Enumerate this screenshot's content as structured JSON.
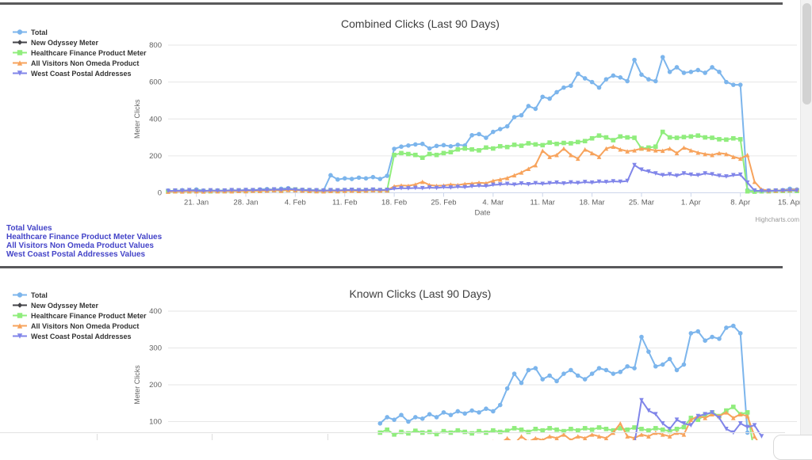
{
  "links": [
    "Total Values",
    "Healthcare Finance Product Meter Values",
    "All Visitors Non Omeda Product Values",
    "West Coast Postal Addresses Values"
  ],
  "chart_data": [
    {
      "type": "line",
      "title": "Combined Clicks (Last 90 Days)",
      "ylabel": "Meter Clicks",
      "xlabel": "Date",
      "credits": "Highcharts.com",
      "ylim": [
        0,
        800
      ],
      "yticks": [
        0,
        200,
        400,
        600,
        800
      ],
      "points": 90,
      "x_range": "17. Jan to 16. Apr, daily",
      "x_tick_labels": [
        "21. Jan",
        "28. Jan",
        "4. Feb",
        "11. Feb",
        "18. Feb",
        "25. Feb",
        "4. Mar",
        "11. Mar",
        "18. Mar",
        "25. Mar",
        "1. Apr",
        "8. Apr",
        "15. Apr"
      ],
      "x_tick_indexes": [
        4,
        11,
        18,
        25,
        32,
        39,
        46,
        53,
        60,
        67,
        74,
        81,
        88
      ],
      "x_axis_visible": true,
      "grid": "horizontal",
      "legend_position": "top-left",
      "series": [
        {
          "name": "Total",
          "color": "#7cb5ec",
          "marker": "circle",
          "values": [
            12,
            10,
            14,
            11,
            18,
            12,
            10,
            13,
            12,
            14,
            12,
            15,
            13,
            18,
            20,
            16,
            22,
            25,
            18,
            16,
            15,
            14,
            13,
            95,
            72,
            78,
            75,
            82,
            78,
            85,
            75,
            92,
            238,
            250,
            256,
            262,
            265,
            240,
            254,
            258,
            252,
            260,
            256,
            312,
            318,
            298,
            330,
            345,
            360,
            410,
            420,
            470,
            455,
            520,
            510,
            545,
            570,
            580,
            645,
            620,
            600,
            570,
            615,
            635,
            625,
            605,
            720,
            640,
            615,
            605,
            735,
            655,
            680,
            650,
            655,
            665,
            650,
            680,
            655,
            600,
            585,
            585,
            15,
            10,
            10,
            12,
            12,
            14,
            22,
            18
          ]
        },
        {
          "name": "New Odyssey Meter",
          "color": "#434348",
          "marker": "diamond",
          "values": []
        },
        {
          "name": "Healthcare Finance Product Meter",
          "color": "#90ed7d",
          "marker": "square",
          "values": [
            8,
            9,
            10,
            8,
            12,
            9,
            8,
            10,
            9,
            10,
            11,
            10,
            12,
            11,
            14,
            15,
            12,
            16,
            18,
            14,
            12,
            11,
            10,
            12,
            10,
            12,
            14,
            12,
            13,
            15,
            12,
            14,
            205,
            215,
            210,
            205,
            190,
            210,
            205,
            215,
            220,
            235,
            240,
            235,
            230,
            245,
            240,
            252,
            248,
            260,
            255,
            268,
            262,
            258,
            272,
            265,
            270,
            268,
            275,
            280,
            295,
            310,
            300,
            285,
            305,
            300,
            298,
            240,
            245,
            250,
            330,
            300,
            298,
            302,
            305,
            310,
            300,
            298,
            290,
            288,
            295,
            290,
            8,
            6,
            8,
            8,
            10,
            10,
            12,
            10
          ]
        },
        {
          "name": "All Visitors Non Omeda Product",
          "color": "#f7a35c",
          "marker": "triangle",
          "values": [
            6,
            8,
            7,
            9,
            8,
            7,
            10,
            8,
            9,
            8,
            10,
            9,
            11,
            10,
            12,
            14,
            11,
            15,
            14,
            12,
            10,
            9,
            8,
            10,
            9,
            11,
            12,
            10,
            12,
            14,
            12,
            13,
            35,
            40,
            38,
            45,
            60,
            42,
            38,
            40,
            45,
            42,
            48,
            50,
            55,
            52,
            65,
            72,
            80,
            95,
            110,
            130,
            150,
            228,
            195,
            205,
            240,
            205,
            185,
            235,
            215,
            195,
            240,
            250,
            235,
            225,
            230,
            240,
            235,
            230,
            228,
            240,
            215,
            245,
            230,
            218,
            210,
            205,
            215,
            210,
            195,
            185,
            205,
            60,
            18,
            12,
            12,
            14,
            16,
            18
          ]
        },
        {
          "name": "West Coast Postal Addresses",
          "color": "#8085e9",
          "marker": "triangle-down",
          "values": [
            10,
            12,
            11,
            14,
            12,
            10,
            13,
            11,
            12,
            14,
            13,
            15,
            14,
            16,
            15,
            18,
            16,
            20,
            17,
            15,
            14,
            13,
            12,
            14,
            13,
            15,
            16,
            14,
            15,
            17,
            15,
            16,
            22,
            25,
            24,
            26,
            25,
            28,
            26,
            30,
            28,
            32,
            30,
            35,
            38,
            36,
            43,
            45,
            48,
            44,
            50,
            46,
            52,
            48,
            52,
            55,
            50,
            56,
            53,
            58,
            55,
            60,
            58,
            62,
            60,
            64,
            150,
            125,
            115,
            105,
            95,
            100,
            92,
            105,
            98,
            95,
            105,
            100,
            92,
            88,
            95,
            98,
            55,
            12,
            10,
            10,
            12,
            12,
            14,
            12
          ]
        }
      ]
    },
    {
      "type": "line",
      "title": "Known Clicks (Last 90 Days)",
      "ylabel": "Meter Clicks",
      "ylim": [
        0,
        400
      ],
      "yticks": [
        100,
        200,
        300,
        400
      ],
      "points": 90,
      "x_range": "17. Jan to 16. Apr, daily (x-axis cut off at bottom of viewport)",
      "x_tick_labels": [],
      "x_tick_indexes": [],
      "x_axis_visible": false,
      "grid": "horizontal",
      "legend_position": "top-left",
      "series": [
        {
          "name": "Total",
          "color": "#7cb5ec",
          "marker": "circle",
          "values": [
            null,
            null,
            null,
            null,
            null,
            null,
            null,
            null,
            null,
            null,
            null,
            null,
            null,
            null,
            null,
            null,
            null,
            null,
            null,
            null,
            null,
            null,
            null,
            null,
            null,
            null,
            null,
            null,
            null,
            null,
            95,
            112,
            105,
            118,
            100,
            112,
            108,
            120,
            112,
            125,
            118,
            128,
            122,
            130,
            125,
            135,
            128,
            145,
            190,
            230,
            205,
            240,
            245,
            215,
            225,
            210,
            230,
            240,
            225,
            215,
            230,
            245,
            240,
            230,
            235,
            250,
            245,
            330,
            290,
            250,
            255,
            270,
            240,
            255,
            340,
            345,
            320,
            330,
            325,
            355,
            360,
            340,
            70,
            null,
            null,
            null,
            null,
            null,
            null,
            null
          ]
        },
        {
          "name": "New Odyssey Meter",
          "color": "#434348",
          "marker": "diamond",
          "values": []
        },
        {
          "name": "Healthcare Finance Product Meter",
          "color": "#90ed7d",
          "marker": "square",
          "values": [
            null,
            null,
            null,
            null,
            null,
            null,
            null,
            null,
            null,
            null,
            null,
            null,
            null,
            null,
            null,
            null,
            null,
            null,
            null,
            null,
            null,
            null,
            null,
            null,
            null,
            null,
            null,
            null,
            null,
            null,
            70,
            78,
            65,
            72,
            68,
            75,
            70,
            72,
            66,
            74,
            70,
            76,
            72,
            68,
            74,
            70,
            76,
            72,
            75,
            82,
            78,
            72,
            80,
            76,
            82,
            78,
            74,
            80,
            76,
            82,
            78,
            84,
            80,
            76,
            82,
            78,
            84,
            80,
            76,
            82,
            78,
            74,
            80,
            85,
            110,
            105,
            118,
            125,
            115,
            130,
            140,
            120,
            125,
            15,
            null,
            null,
            null,
            null,
            null,
            null
          ]
        },
        {
          "name": "All Visitors Non Omeda Product",
          "color": "#f7a35c",
          "marker": "triangle",
          "values": [
            null,
            null,
            null,
            null,
            null,
            null,
            null,
            null,
            null,
            null,
            null,
            null,
            null,
            null,
            null,
            null,
            null,
            null,
            null,
            null,
            null,
            null,
            null,
            null,
            null,
            null,
            null,
            null,
            null,
            null,
            null,
            null,
            null,
            null,
            null,
            null,
            null,
            null,
            null,
            null,
            null,
            null,
            35,
            30,
            40,
            35,
            45,
            40,
            55,
            40,
            60,
            45,
            55,
            50,
            60,
            55,
            65,
            50,
            60,
            55,
            65,
            60,
            55,
            70,
            95,
            60,
            55,
            65,
            60,
            70,
            65,
            60,
            70,
            65,
            105,
            115,
            110,
            120,
            115,
            125,
            110,
            120,
            115,
            60,
            30,
            null,
            null,
            null,
            null,
            null
          ]
        },
        {
          "name": "West Coast Postal Addresses",
          "color": "#8085e9",
          "marker": "triangle-down",
          "values": [
            null,
            null,
            null,
            null,
            null,
            null,
            null,
            null,
            null,
            null,
            null,
            null,
            null,
            null,
            null,
            null,
            null,
            null,
            null,
            null,
            null,
            null,
            null,
            null,
            null,
            null,
            null,
            null,
            null,
            null,
            null,
            null,
            null,
            null,
            null,
            null,
            null,
            null,
            null,
            null,
            null,
            null,
            null,
            null,
            null,
            null,
            null,
            null,
            null,
            30,
            28,
            35,
            30,
            32,
            28,
            35,
            35,
            30,
            38,
            32,
            35,
            30,
            38,
            35,
            40,
            35,
            40,
            158,
            130,
            120,
            95,
            80,
            105,
            95,
            90,
            115,
            120,
            125,
            110,
            80,
            70,
            95,
            85,
            90,
            60,
            null,
            null,
            null,
            null,
            null
          ]
        }
      ]
    }
  ]
}
